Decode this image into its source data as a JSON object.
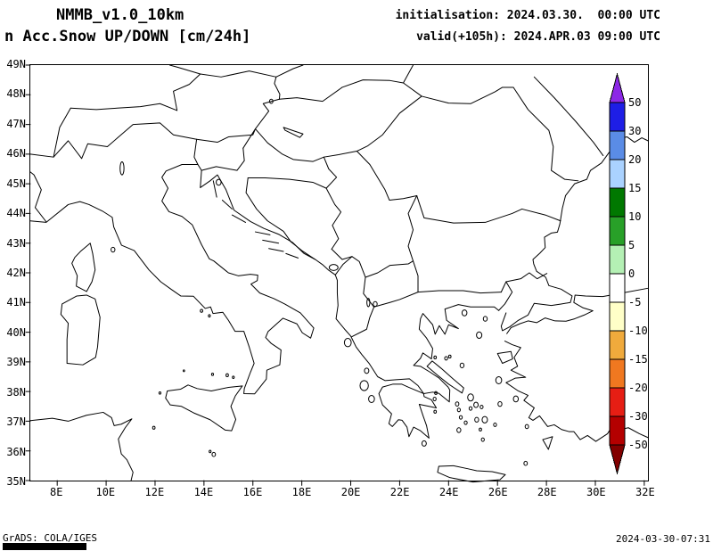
{
  "header": {
    "model": "NMMB_v1.0_10km",
    "product": "n Acc.Snow UP/DOWN [cm/24h]",
    "init": "initialisation: 2024.03.30.  00:00 UTC",
    "valid": "valid(+105h): 2024.APR.03 09:00 UTC"
  },
  "map": {
    "lat_labels": [
      "49N",
      "48N",
      "47N",
      "46N",
      "45N",
      "44N",
      "43N",
      "42N",
      "41N",
      "40N",
      "39N",
      "38N",
      "37N",
      "36N",
      "35N"
    ],
    "lon_labels": [
      "8E",
      "10E",
      "12E",
      "14E",
      "16E",
      "18E",
      "20E",
      "22E",
      "24E",
      "26E",
      "28E",
      "30E",
      "32E"
    ]
  },
  "colorbar": {
    "labels": [
      "50",
      "30",
      "20",
      "15",
      "10",
      "5",
      "0",
      "-5",
      "-10",
      "-15",
      "-20",
      "-30",
      "-50"
    ],
    "above_color": "#8c28e6",
    "segment_colors": [
      "#1e1ee6",
      "#5a8ce6",
      "#aad2ff",
      "#007800",
      "#28a028",
      "#b4f0b4",
      "#ffffff",
      "#ffffc8",
      "#f0aa3c",
      "#f07820",
      "#e61e14",
      "#b40000"
    ],
    "below_color": "#820000"
  },
  "footer": {
    "credit": "GrADS: COLA/IGES",
    "timestamp": "2024-03-30-07:31"
  }
}
